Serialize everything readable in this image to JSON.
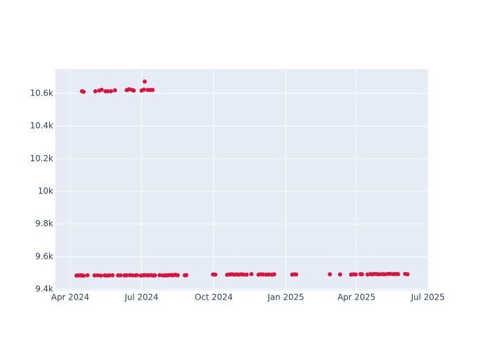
{
  "chart_data": {
    "type": "scatter",
    "color": "#dc143c",
    "grid": true,
    "x": [
      "2024-04-09",
      "2024-04-11",
      "2024-04-14",
      "2024-04-16",
      "2024-04-18",
      "2024-04-23",
      "2024-05-02",
      "2024-05-06",
      "2024-05-10",
      "2024-05-15",
      "2024-05-18",
      "2024-05-21",
      "2024-05-25",
      "2024-06-01",
      "2024-06-04",
      "2024-06-09",
      "2024-06-12",
      "2024-06-16",
      "2024-06-19",
      "2024-06-23",
      "2024-06-25",
      "2024-06-30",
      "2024-07-03",
      "2024-07-05",
      "2024-07-08",
      "2024-07-10",
      "2024-07-13",
      "2024-07-16",
      "2024-07-18",
      "2024-07-24",
      "2024-07-28",
      "2024-07-31",
      "2024-08-02",
      "2024-08-05",
      "2024-08-08",
      "2024-08-10",
      "2024-08-13",
      "2024-08-16",
      "2024-08-25",
      "2024-08-27",
      "2024-09-30",
      "2024-10-03",
      "2024-10-18",
      "2024-10-21",
      "2024-10-24",
      "2024-10-27",
      "2024-10-30",
      "2024-11-02",
      "2024-11-05",
      "2024-11-08",
      "2024-11-12",
      "2024-11-18",
      "2024-11-27",
      "2024-11-30",
      "2024-12-03",
      "2024-12-07",
      "2024-12-10",
      "2024-12-14",
      "2024-12-17",
      "2025-01-09",
      "2025-01-12",
      "2025-01-14",
      "2025-02-26",
      "2025-03-11",
      "2025-03-25",
      "2025-03-28",
      "2025-03-31",
      "2025-04-06",
      "2025-04-08",
      "2025-04-15",
      "2025-04-19",
      "2025-04-21",
      "2025-04-24",
      "2025-04-27",
      "2025-04-30",
      "2025-05-04",
      "2025-05-07",
      "2025-05-11",
      "2025-05-14",
      "2025-05-18",
      "2025-05-21",
      "2025-05-24",
      "2025-06-02",
      "2025-06-05",
      "2024-04-16",
      "2024-04-18",
      "2024-05-03",
      "2024-05-08",
      "2024-05-11",
      "2024-05-16",
      "2024-05-19",
      "2024-05-23",
      "2024-05-28",
      "2024-06-12",
      "2024-06-15",
      "2024-06-19",
      "2024-06-21",
      "2024-07-01",
      "2024-07-04",
      "2024-07-05",
      "2024-07-09",
      "2024-07-12",
      "2024-07-15"
    ],
    "values": [
      9484,
      9485,
      9486,
      9485,
      9483,
      9486,
      9485,
      9486,
      9484,
      9485,
      9484,
      9486,
      9486,
      9485,
      9486,
      9485,
      9486,
      9487,
      9486,
      9485,
      9487,
      9484,
      9486,
      9487,
      9486,
      9486,
      9487,
      9484,
      9486,
      9487,
      9485,
      9486,
      9485,
      9487,
      9488,
      9486,
      9489,
      9486,
      9486,
      9487,
      9491,
      9490,
      9489,
      9491,
      9492,
      9490,
      9491,
      9490,
      9492,
      9490,
      9490,
      9493,
      9490,
      9492,
      9491,
      9490,
      9491,
      9490,
      9492,
      9490,
      9492,
      9491,
      9492,
      9491,
      9490,
      9492,
      9491,
      9493,
      9492,
      9491,
      9493,
      9492,
      9494,
      9493,
      9492,
      9493,
      9492,
      9494,
      9495,
      9493,
      9494,
      9493,
      9494,
      9492,
      10613,
      10610,
      10613,
      10617,
      10622,
      10613,
      10613,
      10613,
      10619,
      10620,
      10625,
      10621,
      10617,
      10617,
      10623,
      10672,
      10621,
      10621,
      10621
    ],
    "xlim": [
      "2024-03-13",
      "2025-07-02"
    ],
    "xticks": [
      {
        "value": "2024-04-01",
        "label": "Apr 2024"
      },
      {
        "value": "2024-07-01",
        "label": "Jul 2024"
      },
      {
        "value": "2024-10-01",
        "label": "Oct 2024"
      },
      {
        "value": "2025-01-01",
        "label": "Jan 2025"
      },
      {
        "value": "2025-04-01",
        "label": "Apr 2025"
      },
      {
        "value": "2025-07-01",
        "label": "Jul 2025"
      }
    ],
    "ylim": [
      9392,
      10748
    ],
    "yticks": [
      {
        "value": 9400,
        "label": "9.4k"
      },
      {
        "value": 9600,
        "label": "9.6k"
      },
      {
        "value": 9800,
        "label": "9.8k"
      },
      {
        "value": 10000,
        "label": "10k"
      },
      {
        "value": 10200,
        "label": "10.2k"
      },
      {
        "value": 10400,
        "label": "10.4k"
      },
      {
        "value": 10600,
        "label": "10.6k"
      }
    ]
  }
}
